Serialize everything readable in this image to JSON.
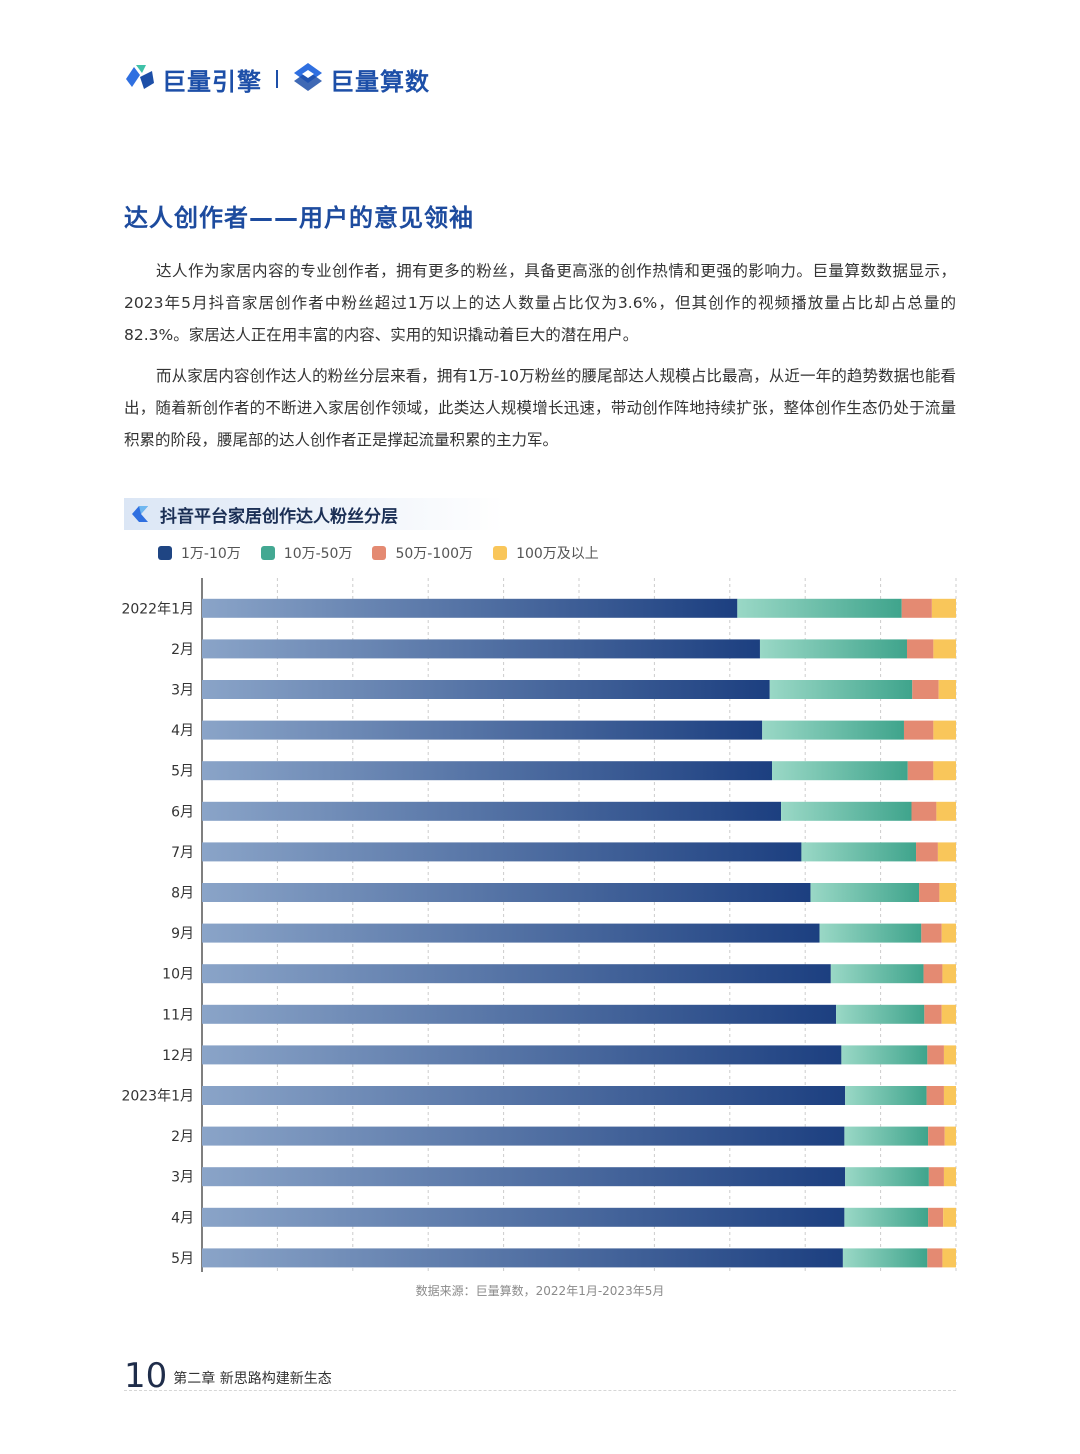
{
  "header": {
    "logo1_text": "巨量引擎",
    "logo2_text": "巨量算数"
  },
  "section_title": "达人创作者——用户的意见领袖",
  "paragraphs": [
    "达人作为家居内容的专业创作者，拥有更多的粉丝，具备更高涨的创作热情和更强的影响力。巨量算数数据显示，2023年5月抖音家居创作者中粉丝超过1万以上的达人数量占比仅为3.6%，但其创作的视频播放量占比却占总量的82.3%。家居达人正在用丰富的内容、实用的知识撬动着巨大的潜在用户。",
    "而从家居内容创作达人的粉丝分层来看，拥有1万-10万粉丝的腰尾部达人规模占比最高，从近一年的趋势数据也能看出，随着新创作者的不断进入家居创作领域，此类达人规模增长迅速，带动创作阵地持续扩张，整体创作生态仍处于流量积累的阶段，腰尾部的达人创作者正是撑起流量积累的主力军。"
  ],
  "chart_title": "抖音平台家居创作达人粉丝分层",
  "colors": {
    "accent": "#1d4b9e",
    "series1_start": "#8aa4c8",
    "series1_end": "#1c3f80",
    "series2_start": "#9ad8c6",
    "series2_end": "#3fa48c",
    "series3": "#e48a72",
    "series4": "#f9c65a"
  },
  "chart_data": {
    "type": "bar",
    "orientation": "horizontal",
    "stacked": true,
    "title": "抖音平台家居创作达人粉丝分层",
    "categories": [
      "2022年1月",
      "2月",
      "3月",
      "4月",
      "5月",
      "6月",
      "7月",
      "8月",
      "9月",
      "10月",
      "11月",
      "12月",
      "2023年1月",
      "2月",
      "3月",
      "4月",
      "5月"
    ],
    "series": [
      {
        "name": "1万-10万",
        "values": [
          71.0,
          74.0,
          75.3,
          74.3,
          75.6,
          76.8,
          79.5,
          80.7,
          81.9,
          83.4,
          84.1,
          84.8,
          85.3,
          85.2,
          85.3,
          85.2,
          85.0
        ]
      },
      {
        "name": "10万-50万",
        "values": [
          21.8,
          19.5,
          18.9,
          18.8,
          18.0,
          17.3,
          15.2,
          14.4,
          13.5,
          12.3,
          11.7,
          11.4,
          10.8,
          11.1,
          11.1,
          11.1,
          11.2
        ]
      },
      {
        "name": "50万-100万",
        "values": [
          4.0,
          3.5,
          3.5,
          3.9,
          3.4,
          3.3,
          2.9,
          2.7,
          2.7,
          2.5,
          2.3,
          2.2,
          2.3,
          2.2,
          2.0,
          2.0,
          2.0
        ]
      },
      {
        "name": "100万及以上",
        "values": [
          3.2,
          3.0,
          2.3,
          3.0,
          3.0,
          2.6,
          2.4,
          2.2,
          1.9,
          1.8,
          1.9,
          1.6,
          1.6,
          1.5,
          1.6,
          1.7,
          1.8
        ]
      }
    ],
    "xlim": [
      0,
      100
    ],
    "grid": true,
    "legend_position": "top-left"
  },
  "source_text": "数据来源：巨量算数，2022年1月-2023年5月",
  "footer": {
    "page_number": "10",
    "chapter": "第二章  新思路构建新生态"
  }
}
